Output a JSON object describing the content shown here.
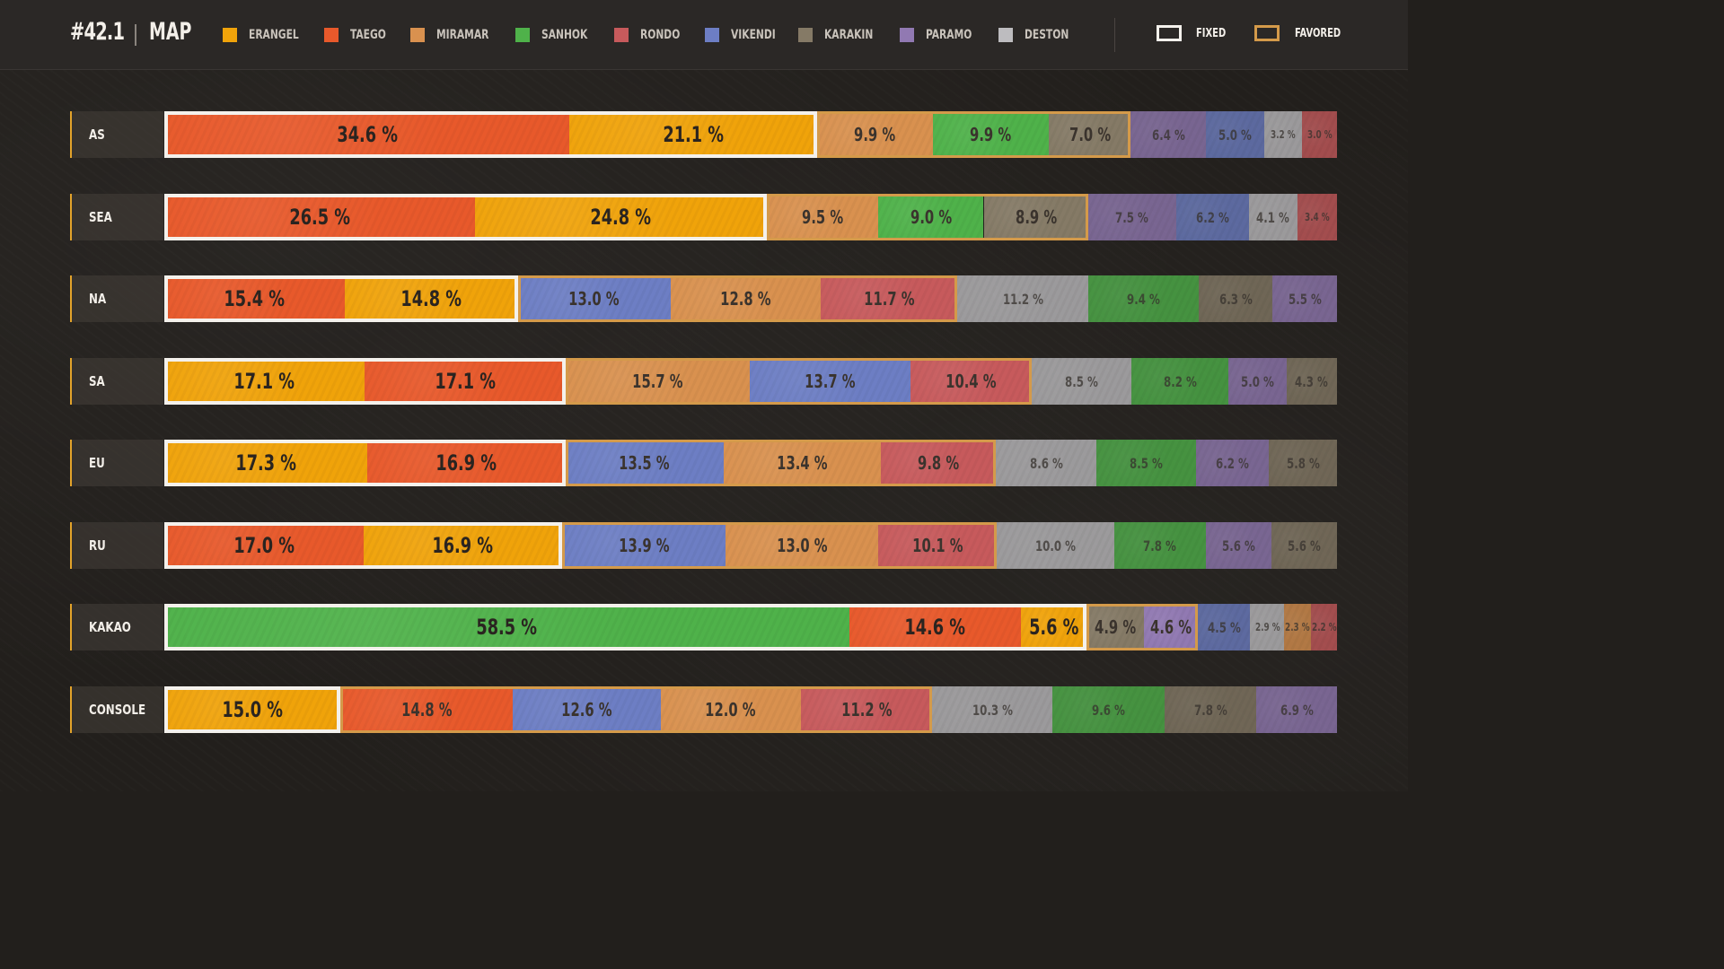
{
  "header": {
    "patch": "#42.1",
    "title": "MAP",
    "fixed_label": "FIXED",
    "favored_label": "FAVORED"
  },
  "colors": {
    "ERANGEL": "#f0a30a",
    "TAEGO": "#e8592b",
    "MIRAMAR": "#d9914f",
    "SANHOK": "#4fb24a",
    "RONDO": "#c75a5c",
    "VIKENDI": "#6d7ec4",
    "KARAKIN": "#857a66",
    "PARAMO": "#9179b2",
    "DESTON": "#bdbcbf",
    "fixed": "#f4f1ec",
    "favored": "#d49a4a"
  },
  "legend": [
    {
      "label": "ERANGEL"
    },
    {
      "label": "TAEGO"
    },
    {
      "label": "MIRAMAR"
    },
    {
      "label": "SANHOK"
    },
    {
      "label": "RONDO"
    },
    {
      "label": "VIKENDI"
    },
    {
      "label": "KARAKIN"
    },
    {
      "label": "PARAMO"
    },
    {
      "label": "DESTON"
    }
  ],
  "chart_data": {
    "type": "bar",
    "orientation": "horizontal-stacked-100",
    "title": "MAP",
    "categories": [
      "AS",
      "SEA",
      "NA",
      "SA",
      "EU",
      "RU",
      "KAKAO",
      "CONSOLE"
    ],
    "rows": [
      {
        "region": "AS",
        "segments": [
          {
            "map": "TAEGO",
            "value": 34.6,
            "label": "34.6 %",
            "group": "fixed"
          },
          {
            "map": "ERANGEL",
            "value": 21.1,
            "label": "21.1 %",
            "group": "fixed"
          },
          {
            "map": "MIRAMAR",
            "value": 9.9,
            "label": "9.9 %",
            "group": "favored"
          },
          {
            "map": "SANHOK",
            "value": 9.9,
            "label": "9.9 %",
            "group": "favored"
          },
          {
            "map": "KARAKIN",
            "value": 7.0,
            "label": "7.0 %",
            "group": "favored"
          },
          {
            "map": "PARAMO",
            "value": 6.4,
            "label": "6.4 %",
            "group": "other"
          },
          {
            "map": "VIKENDI",
            "value": 5.0,
            "label": "5.0 %",
            "group": "other"
          },
          {
            "map": "DESTON",
            "value": 3.2,
            "label": "3.2 %",
            "group": "other"
          },
          {
            "map": "RONDO",
            "value": 3.0,
            "label": "3.0 %",
            "group": "other"
          }
        ]
      },
      {
        "region": "SEA",
        "segments": [
          {
            "map": "TAEGO",
            "value": 26.5,
            "label": "26.5 %",
            "group": "fixed"
          },
          {
            "map": "ERANGEL",
            "value": 24.8,
            "label": "24.8 %",
            "group": "fixed"
          },
          {
            "map": "MIRAMAR",
            "value": 9.5,
            "label": "9.5 %",
            "group": "favored"
          },
          {
            "map": "SANHOK",
            "value": 9.0,
            "label": "9.0 %",
            "group": "favored"
          },
          {
            "map": "KARAKIN",
            "value": 8.9,
            "label": "8.9 %",
            "group": "favored"
          },
          {
            "map": "PARAMO",
            "value": 7.5,
            "label": "7.5 %",
            "group": "other"
          },
          {
            "map": "VIKENDI",
            "value": 6.2,
            "label": "6.2 %",
            "group": "other"
          },
          {
            "map": "DESTON",
            "value": 4.1,
            "label": "4.1 %",
            "group": "other"
          },
          {
            "map": "RONDO",
            "value": 3.4,
            "label": "3.4 %",
            "group": "other"
          }
        ]
      },
      {
        "region": "NA",
        "segments": [
          {
            "map": "TAEGO",
            "value": 15.4,
            "label": "15.4 %",
            "group": "fixed"
          },
          {
            "map": "ERANGEL",
            "value": 14.8,
            "label": "14.8 %",
            "group": "fixed"
          },
          {
            "map": "VIKENDI",
            "value": 13.0,
            "label": "13.0 %",
            "group": "favored"
          },
          {
            "map": "MIRAMAR",
            "value": 12.8,
            "label": "12.8 %",
            "group": "favored"
          },
          {
            "map": "RONDO",
            "value": 11.7,
            "label": "11.7 %",
            "group": "favored"
          },
          {
            "map": "DESTON",
            "value": 11.2,
            "label": "11.2 %",
            "group": "other"
          },
          {
            "map": "SANHOK",
            "value": 9.4,
            "label": "9.4 %",
            "group": "other"
          },
          {
            "map": "KARAKIN",
            "value": 6.3,
            "label": "6.3 %",
            "group": "other"
          },
          {
            "map": "PARAMO",
            "value": 5.5,
            "label": "5.5 %",
            "group": "other"
          }
        ]
      },
      {
        "region": "SA",
        "segments": [
          {
            "map": "ERANGEL",
            "value": 17.1,
            "label": "17.1 %",
            "group": "fixed"
          },
          {
            "map": "TAEGO",
            "value": 17.1,
            "label": "17.1 %",
            "group": "fixed"
          },
          {
            "map": "MIRAMAR",
            "value": 15.7,
            "label": "15.7 %",
            "group": "favored"
          },
          {
            "map": "VIKENDI",
            "value": 13.7,
            "label": "13.7 %",
            "group": "favored"
          },
          {
            "map": "RONDO",
            "value": 10.4,
            "label": "10.4 %",
            "group": "favored"
          },
          {
            "map": "DESTON",
            "value": 8.5,
            "label": "8.5 %",
            "group": "other"
          },
          {
            "map": "SANHOK",
            "value": 8.2,
            "label": "8.2 %",
            "group": "other"
          },
          {
            "map": "PARAMO",
            "value": 5.0,
            "label": "5.0 %",
            "group": "other"
          },
          {
            "map": "KARAKIN",
            "value": 4.3,
            "label": "4.3 %",
            "group": "other"
          }
        ]
      },
      {
        "region": "EU",
        "segments": [
          {
            "map": "ERANGEL",
            "value": 17.3,
            "label": "17.3 %",
            "group": "fixed"
          },
          {
            "map": "TAEGO",
            "value": 16.9,
            "label": "16.9 %",
            "group": "fixed"
          },
          {
            "map": "VIKENDI",
            "value": 13.5,
            "label": "13.5 %",
            "group": "favored"
          },
          {
            "map": "MIRAMAR",
            "value": 13.4,
            "label": "13.4 %",
            "group": "favored"
          },
          {
            "map": "RONDO",
            "value": 9.8,
            "label": "9.8 %",
            "group": "favored"
          },
          {
            "map": "DESTON",
            "value": 8.6,
            "label": "8.6 %",
            "group": "other"
          },
          {
            "map": "SANHOK",
            "value": 8.5,
            "label": "8.5 %",
            "group": "other"
          },
          {
            "map": "PARAMO",
            "value": 6.2,
            "label": "6.2 %",
            "group": "other"
          },
          {
            "map": "KARAKIN",
            "value": 5.8,
            "label": "5.8 %",
            "group": "other"
          }
        ]
      },
      {
        "region": "RU",
        "segments": [
          {
            "map": "TAEGO",
            "value": 17.0,
            "label": "17.0 %",
            "group": "fixed"
          },
          {
            "map": "ERANGEL",
            "value": 16.9,
            "label": "16.9 %",
            "group": "fixed"
          },
          {
            "map": "VIKENDI",
            "value": 13.9,
            "label": "13.9 %",
            "group": "favored"
          },
          {
            "map": "MIRAMAR",
            "value": 13.0,
            "label": "13.0 %",
            "group": "favored"
          },
          {
            "map": "RONDO",
            "value": 10.1,
            "label": "10.1 %",
            "group": "favored"
          },
          {
            "map": "DESTON",
            "value": 10.0,
            "label": "10.0 %",
            "group": "other"
          },
          {
            "map": "SANHOK",
            "value": 7.8,
            "label": "7.8 %",
            "group": "other"
          },
          {
            "map": "PARAMO",
            "value": 5.6,
            "label": "5.6 %",
            "group": "other"
          },
          {
            "map": "KARAKIN",
            "value": 5.6,
            "label": "5.6 %",
            "group": "other"
          }
        ]
      },
      {
        "region": "KAKAO",
        "segments": [
          {
            "map": "SANHOK",
            "value": 58.5,
            "label": "58.5 %",
            "group": "fixed"
          },
          {
            "map": "TAEGO",
            "value": 14.6,
            "label": "14.6 %",
            "group": "fixed"
          },
          {
            "map": "ERANGEL",
            "value": 5.6,
            "label": "5.6 %",
            "group": "fixed"
          },
          {
            "map": "KARAKIN",
            "value": 4.9,
            "label": "4.9 %",
            "group": "favored"
          },
          {
            "map": "PARAMO",
            "value": 4.6,
            "label": "4.6 %",
            "group": "favored"
          },
          {
            "map": "VIKENDI",
            "value": 4.5,
            "label": "4.5 %",
            "group": "other"
          },
          {
            "map": "DESTON",
            "value": 2.9,
            "label": "2.9 %",
            "group": "other"
          },
          {
            "map": "MIRAMAR",
            "value": 2.3,
            "label": "2.3 %",
            "group": "other"
          },
          {
            "map": "RONDO",
            "value": 2.2,
            "label": "2.2 %",
            "group": "other"
          }
        ]
      },
      {
        "region": "CONSOLE",
        "segments": [
          {
            "map": "ERANGEL",
            "value": 15.0,
            "label": "15.0 %",
            "group": "fixed"
          },
          {
            "map": "TAEGO",
            "value": 14.8,
            "label": "14.8 %",
            "group": "favored"
          },
          {
            "map": "VIKENDI",
            "value": 12.6,
            "label": "12.6 %",
            "group": "favored"
          },
          {
            "map": "MIRAMAR",
            "value": 12.0,
            "label": "12.0 %",
            "group": "favored"
          },
          {
            "map": "RONDO",
            "value": 11.2,
            "label": "11.2 %",
            "group": "favored"
          },
          {
            "map": "DESTON",
            "value": 10.3,
            "label": "10.3 %",
            "group": "other"
          },
          {
            "map": "SANHOK",
            "value": 9.6,
            "label": "9.6 %",
            "group": "other"
          },
          {
            "map": "KARAKIN",
            "value": 7.8,
            "label": "7.8 %",
            "group": "other"
          },
          {
            "map": "PARAMO",
            "value": 6.9,
            "label": "6.9 %",
            "group": "other"
          }
        ]
      }
    ]
  }
}
